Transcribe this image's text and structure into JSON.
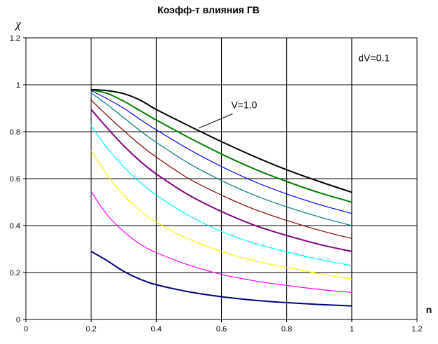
{
  "chart_data": {
    "type": "line",
    "title": "Коэфф-т влияния ГВ",
    "xlabel": "n",
    "ylabel": "χ",
    "xlim": [
      0,
      1.2
    ],
    "ylim": [
      0,
      1.2
    ],
    "xticks": [
      "0",
      "0.2",
      "0.4",
      "0.6",
      "0.8",
      "1",
      "1.2"
    ],
    "yticks": [
      "0",
      "0.2",
      "0.4",
      "0.6",
      "0.8",
      "1",
      "1.2"
    ],
    "grid": true,
    "x": [
      0.2,
      0.25,
      0.3,
      0.35,
      0.4,
      0.5,
      0.6,
      0.7,
      0.8,
      0.9,
      1.0
    ],
    "series": [
      {
        "color": "#000080",
        "values": [
          0.29,
          0.25,
          0.205,
          0.172,
          0.148,
          0.118,
          0.097,
          0.082,
          0.072,
          0.064,
          0.058
        ]
      },
      {
        "color": "#ff00ff",
        "values": [
          0.545,
          0.445,
          0.375,
          0.322,
          0.285,
          0.232,
          0.192,
          0.165,
          0.145,
          0.128,
          0.115
        ]
      },
      {
        "color": "#ffff00",
        "values": [
          0.72,
          0.615,
          0.53,
          0.465,
          0.415,
          0.342,
          0.29,
          0.25,
          0.222,
          0.195,
          0.172
        ]
      },
      {
        "color": "#00ffff",
        "values": [
          0.825,
          0.73,
          0.65,
          0.585,
          0.53,
          0.442,
          0.375,
          0.325,
          0.288,
          0.256,
          0.23
        ]
      },
      {
        "color": "#800080",
        "values": [
          0.895,
          0.815,
          0.74,
          0.675,
          0.62,
          0.53,
          0.46,
          0.402,
          0.358,
          0.32,
          0.29
        ]
      },
      {
        "color": "#800000",
        "values": [
          0.935,
          0.868,
          0.805,
          0.745,
          0.692,
          0.6,
          0.53,
          0.47,
          0.422,
          0.38,
          0.345
        ]
      },
      {
        "color": "#008080",
        "values": [
          0.965,
          0.915,
          0.86,
          0.805,
          0.755,
          0.665,
          0.592,
          0.53,
          0.48,
          0.437,
          0.4
        ]
      },
      {
        "color": "#0000ff",
        "values": [
          0.975,
          0.94,
          0.9,
          0.853,
          0.808,
          0.725,
          0.652,
          0.588,
          0.535,
          0.49,
          0.452
        ]
      },
      {
        "color": "#008000",
        "values": [
          0.978,
          0.963,
          0.93,
          0.89,
          0.85,
          0.775,
          0.705,
          0.642,
          0.588,
          0.54,
          0.5
        ]
      },
      {
        "color": "#000000",
        "values": [
          0.98,
          0.975,
          0.962,
          0.935,
          0.895,
          0.825,
          0.758,
          0.695,
          0.638,
          0.588,
          0.542
        ]
      }
    ],
    "annotations": [
      {
        "text": "V=1.0",
        "x": 0.63,
        "y": 0.9,
        "points_to": [
          0.53,
          0.815
        ]
      },
      {
        "text": "dV=0.1",
        "x": 1.02,
        "y": 1.1
      }
    ]
  }
}
